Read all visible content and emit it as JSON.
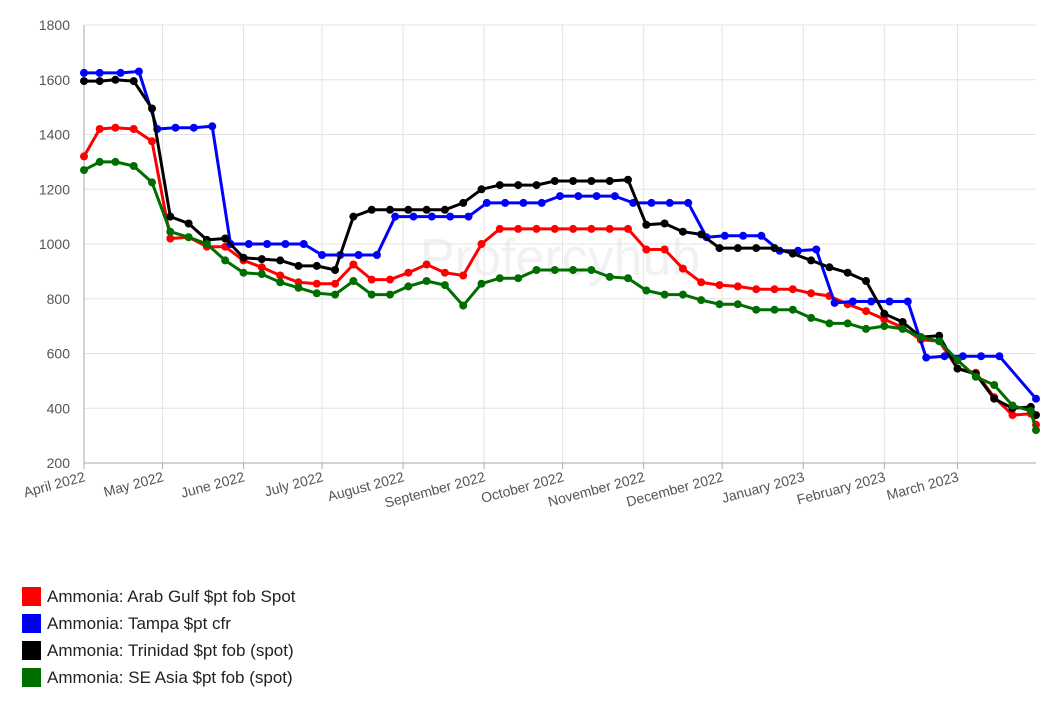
{
  "watermark": "Profercyhub",
  "chart_data": {
    "type": "line",
    "title": "",
    "xlabel": "",
    "ylabel": "",
    "ylim": [
      200,
      1800
    ],
    "yticks": [
      200,
      400,
      600,
      800,
      1000,
      1200,
      1400,
      1600,
      1800
    ],
    "grid": true,
    "legend_position": "bottom-left",
    "xlim": [
      "2022-04-01",
      "2023-03-31"
    ],
    "xticks": [
      {
        "date": "2022-04-01",
        "label": "April 2022"
      },
      {
        "date": "2022-05-01",
        "label": "May 2022"
      },
      {
        "date": "2022-06-01",
        "label": "June 2022"
      },
      {
        "date": "2022-07-01",
        "label": "July 2022"
      },
      {
        "date": "2022-08-01",
        "label": "August 2022"
      },
      {
        "date": "2022-09-01",
        "label": "September 2022"
      },
      {
        "date": "2022-10-01",
        "label": "October 2022"
      },
      {
        "date": "2022-11-01",
        "label": "November 2022"
      },
      {
        "date": "2022-12-01",
        "label": "December 2022"
      },
      {
        "date": "2023-01-01",
        "label": "January 2023"
      },
      {
        "date": "2023-02-01",
        "label": "February 2023"
      },
      {
        "date": "2023-03-01",
        "label": "March 2023"
      }
    ],
    "series": [
      {
        "name": "Ammonia: Arab Gulf $pt fob Spot",
        "color": "#ff0000",
        "points": [
          [
            "2022-04-01",
            1320
          ],
          [
            "2022-04-07",
            1420
          ],
          [
            "2022-04-13",
            1425
          ],
          [
            "2022-04-20",
            1420
          ],
          [
            "2022-04-27",
            1375
          ],
          [
            "2022-05-04",
            1020
          ],
          [
            "2022-05-11",
            1025
          ],
          [
            "2022-05-18",
            990
          ],
          [
            "2022-05-25",
            990
          ],
          [
            "2022-06-01",
            940
          ],
          [
            "2022-06-08",
            915
          ],
          [
            "2022-06-15",
            885
          ],
          [
            "2022-06-22",
            860
          ],
          [
            "2022-06-29",
            855
          ],
          [
            "2022-07-06",
            855
          ],
          [
            "2022-07-13",
            925
          ],
          [
            "2022-07-20",
            870
          ],
          [
            "2022-07-27",
            870
          ],
          [
            "2022-08-03",
            895
          ],
          [
            "2022-08-10",
            925
          ],
          [
            "2022-08-17",
            895
          ],
          [
            "2022-08-24",
            885
          ],
          [
            "2022-08-31",
            1000
          ],
          [
            "2022-09-07",
            1055
          ],
          [
            "2022-09-14",
            1055
          ],
          [
            "2022-09-21",
            1055
          ],
          [
            "2022-09-28",
            1055
          ],
          [
            "2022-10-05",
            1055
          ],
          [
            "2022-10-12",
            1055
          ],
          [
            "2022-10-19",
            1055
          ],
          [
            "2022-10-26",
            1055
          ],
          [
            "2022-11-02",
            980
          ],
          [
            "2022-11-09",
            980
          ],
          [
            "2022-11-16",
            910
          ],
          [
            "2022-11-23",
            860
          ],
          [
            "2022-11-30",
            850
          ],
          [
            "2022-12-07",
            845
          ],
          [
            "2022-12-14",
            835
          ],
          [
            "2022-12-21",
            835
          ],
          [
            "2022-12-28",
            835
          ],
          [
            "2023-01-04",
            820
          ],
          [
            "2023-01-11",
            810
          ],
          [
            "2023-01-18",
            780
          ],
          [
            "2023-01-25",
            755
          ],
          [
            "2023-02-01",
            725
          ],
          [
            "2023-02-08",
            695
          ],
          [
            "2023-02-15",
            650
          ],
          [
            "2023-02-22",
            645
          ],
          [
            "2023-03-01",
            545
          ],
          [
            "2023-03-08",
            530
          ],
          [
            "2023-03-15",
            440
          ],
          [
            "2023-03-22",
            375
          ],
          [
            "2023-03-29",
            380
          ],
          [
            "2023-03-31",
            340
          ]
        ]
      },
      {
        "name": "Ammonia: Tampa $pt cfr",
        "color": "#0000ff",
        "points": [
          [
            "2022-04-01",
            1625
          ],
          [
            "2022-04-07",
            1625
          ],
          [
            "2022-04-15",
            1625
          ],
          [
            "2022-04-22",
            1630
          ],
          [
            "2022-04-29",
            1420
          ],
          [
            "2022-05-06",
            1425
          ],
          [
            "2022-05-13",
            1425
          ],
          [
            "2022-05-20",
            1430
          ],
          [
            "2022-05-27",
            1000
          ],
          [
            "2022-06-03",
            1000
          ],
          [
            "2022-06-10",
            1000
          ],
          [
            "2022-06-17",
            1000
          ],
          [
            "2022-06-24",
            1000
          ],
          [
            "2022-07-01",
            960
          ],
          [
            "2022-07-08",
            960
          ],
          [
            "2022-07-15",
            960
          ],
          [
            "2022-07-22",
            960
          ],
          [
            "2022-07-29",
            1100
          ],
          [
            "2022-08-05",
            1100
          ],
          [
            "2022-08-12",
            1100
          ],
          [
            "2022-08-19",
            1100
          ],
          [
            "2022-08-26",
            1100
          ],
          [
            "2022-09-02",
            1150
          ],
          [
            "2022-09-09",
            1150
          ],
          [
            "2022-09-16",
            1150
          ],
          [
            "2022-09-23",
            1150
          ],
          [
            "2022-09-30",
            1175
          ],
          [
            "2022-10-07",
            1175
          ],
          [
            "2022-10-14",
            1175
          ],
          [
            "2022-10-21",
            1175
          ],
          [
            "2022-10-28",
            1150
          ],
          [
            "2022-11-04",
            1150
          ],
          [
            "2022-11-11",
            1150
          ],
          [
            "2022-11-18",
            1150
          ],
          [
            "2022-11-25",
            1025
          ],
          [
            "2022-12-02",
            1030
          ],
          [
            "2022-12-09",
            1030
          ],
          [
            "2022-12-16",
            1030
          ],
          [
            "2022-12-23",
            975
          ],
          [
            "2022-12-30",
            975
          ],
          [
            "2023-01-06",
            980
          ],
          [
            "2023-01-13",
            785
          ],
          [
            "2023-01-20",
            790
          ],
          [
            "2023-01-27",
            790
          ],
          [
            "2023-02-03",
            790
          ],
          [
            "2023-02-10",
            790
          ],
          [
            "2023-02-17",
            585
          ],
          [
            "2023-02-24",
            590
          ],
          [
            "2023-03-03",
            590
          ],
          [
            "2023-03-10",
            590
          ],
          [
            "2023-03-17",
            590
          ],
          [
            "2023-03-31",
            435
          ]
        ]
      },
      {
        "name": "Ammonia: Trinidad $pt fob (spot)",
        "color": "#000000",
        "points": [
          [
            "2022-04-01",
            1595
          ],
          [
            "2022-04-07",
            1595
          ],
          [
            "2022-04-13",
            1600
          ],
          [
            "2022-04-20",
            1595
          ],
          [
            "2022-04-27",
            1495
          ],
          [
            "2022-05-04",
            1100
          ],
          [
            "2022-05-11",
            1075
          ],
          [
            "2022-05-18",
            1015
          ],
          [
            "2022-05-25",
            1020
          ],
          [
            "2022-06-01",
            950
          ],
          [
            "2022-06-08",
            945
          ],
          [
            "2022-06-15",
            940
          ],
          [
            "2022-06-22",
            920
          ],
          [
            "2022-06-29",
            920
          ],
          [
            "2022-07-06",
            905
          ],
          [
            "2022-07-13",
            1100
          ],
          [
            "2022-07-20",
            1125
          ],
          [
            "2022-07-27",
            1125
          ],
          [
            "2022-08-03",
            1125
          ],
          [
            "2022-08-10",
            1125
          ],
          [
            "2022-08-17",
            1125
          ],
          [
            "2022-08-24",
            1150
          ],
          [
            "2022-08-31",
            1200
          ],
          [
            "2022-09-07",
            1215
          ],
          [
            "2022-09-14",
            1215
          ],
          [
            "2022-09-21",
            1215
          ],
          [
            "2022-09-28",
            1230
          ],
          [
            "2022-10-05",
            1230
          ],
          [
            "2022-10-12",
            1230
          ],
          [
            "2022-10-19",
            1230
          ],
          [
            "2022-10-26",
            1235
          ],
          [
            "2022-11-02",
            1070
          ],
          [
            "2022-11-09",
            1075
          ],
          [
            "2022-11-16",
            1045
          ],
          [
            "2022-11-23",
            1035
          ],
          [
            "2022-11-30",
            985
          ],
          [
            "2022-12-07",
            985
          ],
          [
            "2022-12-14",
            985
          ],
          [
            "2022-12-21",
            985
          ],
          [
            "2022-12-28",
            965
          ],
          [
            "2023-01-04",
            940
          ],
          [
            "2023-01-11",
            915
          ],
          [
            "2023-01-18",
            895
          ],
          [
            "2023-01-25",
            865
          ],
          [
            "2023-02-01",
            745
          ],
          [
            "2023-02-08",
            715
          ],
          [
            "2023-02-15",
            660
          ],
          [
            "2023-02-22",
            665
          ],
          [
            "2023-03-01",
            545
          ],
          [
            "2023-03-08",
            525
          ],
          [
            "2023-03-15",
            435
          ],
          [
            "2023-03-22",
            400
          ],
          [
            "2023-03-29",
            405
          ],
          [
            "2023-03-31",
            375
          ]
        ]
      },
      {
        "name": "Ammonia: SE Asia $pt fob (spot)",
        "color": "#006d00",
        "points": [
          [
            "2022-04-01",
            1270
          ],
          [
            "2022-04-07",
            1300
          ],
          [
            "2022-04-13",
            1300
          ],
          [
            "2022-04-20",
            1285
          ],
          [
            "2022-04-27",
            1225
          ],
          [
            "2022-05-04",
            1045
          ],
          [
            "2022-05-11",
            1025
          ],
          [
            "2022-05-18",
            1000
          ],
          [
            "2022-05-25",
            940
          ],
          [
            "2022-06-01",
            895
          ],
          [
            "2022-06-08",
            890
          ],
          [
            "2022-06-15",
            860
          ],
          [
            "2022-06-22",
            840
          ],
          [
            "2022-06-29",
            820
          ],
          [
            "2022-07-06",
            815
          ],
          [
            "2022-07-13",
            865
          ],
          [
            "2022-07-20",
            815
          ],
          [
            "2022-07-27",
            815
          ],
          [
            "2022-08-03",
            845
          ],
          [
            "2022-08-10",
            865
          ],
          [
            "2022-08-17",
            850
          ],
          [
            "2022-08-24",
            775
          ],
          [
            "2022-08-31",
            855
          ],
          [
            "2022-09-07",
            875
          ],
          [
            "2022-09-14",
            875
          ],
          [
            "2022-09-21",
            905
          ],
          [
            "2022-09-28",
            905
          ],
          [
            "2022-10-05",
            905
          ],
          [
            "2022-10-12",
            905
          ],
          [
            "2022-10-19",
            880
          ],
          [
            "2022-10-26",
            875
          ],
          [
            "2022-11-02",
            830
          ],
          [
            "2022-11-09",
            815
          ],
          [
            "2022-11-16",
            815
          ],
          [
            "2022-11-23",
            795
          ],
          [
            "2022-11-30",
            780
          ],
          [
            "2022-12-07",
            780
          ],
          [
            "2022-12-14",
            760
          ],
          [
            "2022-12-21",
            760
          ],
          [
            "2022-12-28",
            760
          ],
          [
            "2023-01-04",
            730
          ],
          [
            "2023-01-11",
            710
          ],
          [
            "2023-01-18",
            710
          ],
          [
            "2023-01-25",
            690
          ],
          [
            "2023-02-01",
            700
          ],
          [
            "2023-02-08",
            690
          ],
          [
            "2023-02-15",
            660
          ],
          [
            "2023-02-22",
            645
          ],
          [
            "2023-03-01",
            575
          ],
          [
            "2023-03-08",
            515
          ],
          [
            "2023-03-15",
            485
          ],
          [
            "2023-03-22",
            410
          ],
          [
            "2023-03-29",
            390
          ],
          [
            "2023-03-31",
            320
          ]
        ]
      }
    ]
  }
}
